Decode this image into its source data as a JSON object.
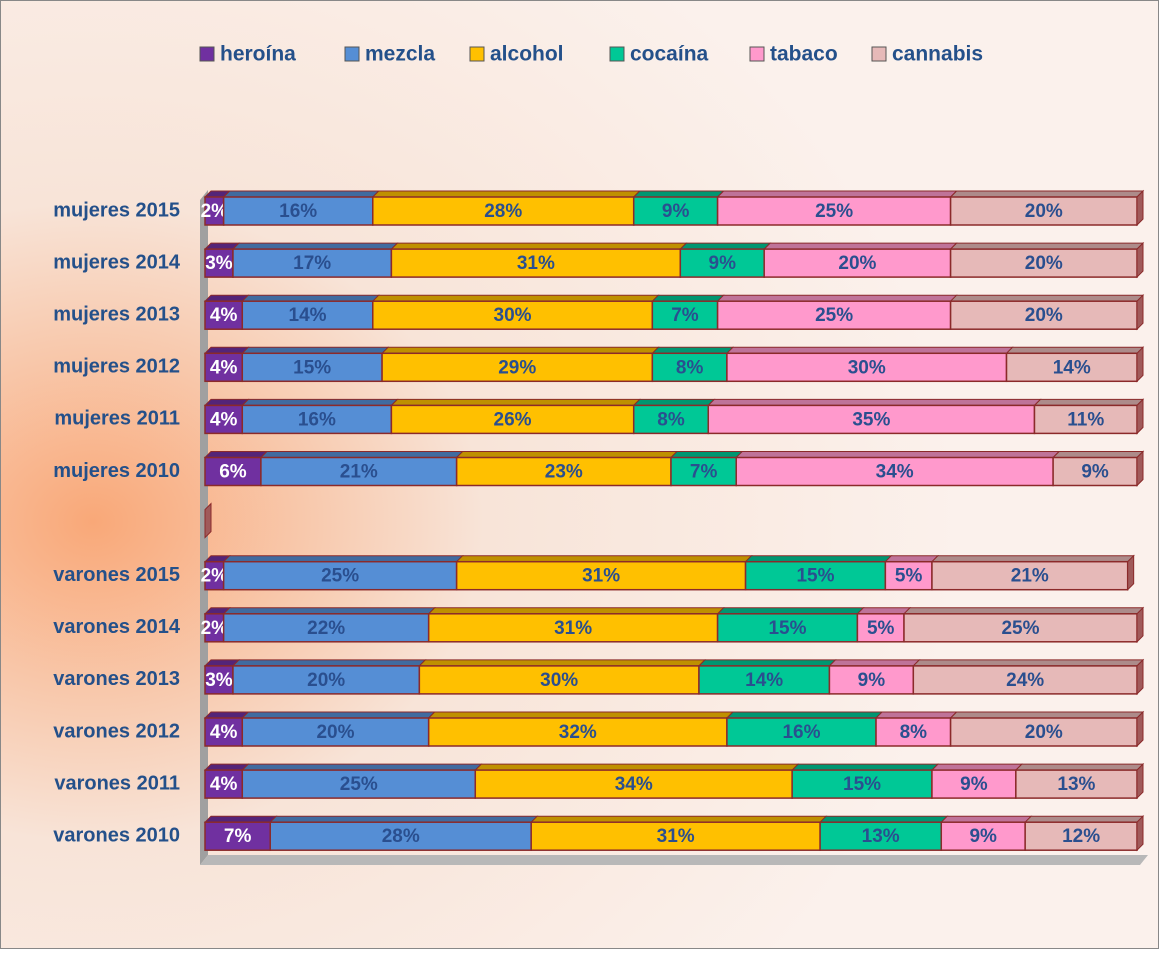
{
  "chart_data": {
    "type": "bar",
    "orientation": "horizontal",
    "stacked": true,
    "categories": [
      "mujeres 2015",
      "mujeres 2014",
      "mujeres 2013",
      "mujeres 2012",
      "mujeres 2011",
      "mujeres 2010",
      null,
      "varones 2015",
      "varones 2014",
      "varones 2013",
      "varones 2012",
      "varones 2011",
      "varones 2010"
    ],
    "series": [
      {
        "name": "heroína",
        "color": "#7030a0",
        "values": [
          2,
          3,
          4,
          4,
          4,
          6,
          null,
          2,
          2,
          3,
          4,
          4,
          7
        ],
        "value_labels": [
          "2%",
          "3%",
          "4%",
          "4%",
          "4%",
          "6%",
          null,
          "2%",
          "2%",
          "3%",
          "4%",
          "4%",
          "7%"
        ]
      },
      {
        "name": "mezcla",
        "color": "#558ed5",
        "values": [
          16,
          17,
          14,
          15,
          16,
          21,
          null,
          25,
          22,
          20,
          20,
          25,
          28
        ],
        "value_labels": [
          "16%",
          "17%",
          "14%",
          "15%",
          "16%",
          "21%",
          null,
          "25%",
          "22%",
          "20%",
          "20%",
          "25%",
          "28%"
        ]
      },
      {
        "name": "alcohol",
        "color": "#ffc000",
        "values": [
          28,
          31,
          30,
          29,
          26,
          23,
          null,
          31,
          31,
          30,
          32,
          34,
          31
        ],
        "value_labels": [
          "28%",
          "31%",
          "30%",
          "29%",
          "26%",
          "23%",
          null,
          "31%",
          "31%",
          "30%",
          "32%",
          "34%",
          "31%"
        ]
      },
      {
        "name": "cocaína",
        "color": "#00c896",
        "values": [
          9,
          9,
          7,
          8,
          8,
          7,
          null,
          15,
          15,
          14,
          16,
          15,
          13
        ],
        "value_labels": [
          "9%",
          "9%",
          "7%",
          "8%",
          "8%",
          "7%",
          null,
          "15%",
          "15%",
          "14%",
          "16%",
          "15%",
          "13%"
        ]
      },
      {
        "name": "tabaco",
        "color": "#ff99cc",
        "values": [
          25,
          20,
          25,
          30,
          35,
          34,
          null,
          5,
          5,
          9,
          8,
          9,
          9
        ],
        "value_labels": [
          "25%",
          "20%",
          "25%",
          "30%",
          "35%",
          "34%",
          null,
          "5%",
          "5%",
          "9%",
          "8%",
          "9%",
          "9%"
        ]
      },
      {
        "name": "cannabis",
        "color": "#e6b9b8",
        "values": [
          20,
          20,
          20,
          14,
          11,
          9,
          null,
          21,
          25,
          24,
          20,
          13,
          12
        ],
        "value_labels": [
          "20%",
          "20%",
          "20%",
          "14%",
          "11%",
          "9%",
          null,
          "21%",
          "25%",
          "24%",
          "20%",
          "13%",
          "12%"
        ]
      }
    ]
  }
}
